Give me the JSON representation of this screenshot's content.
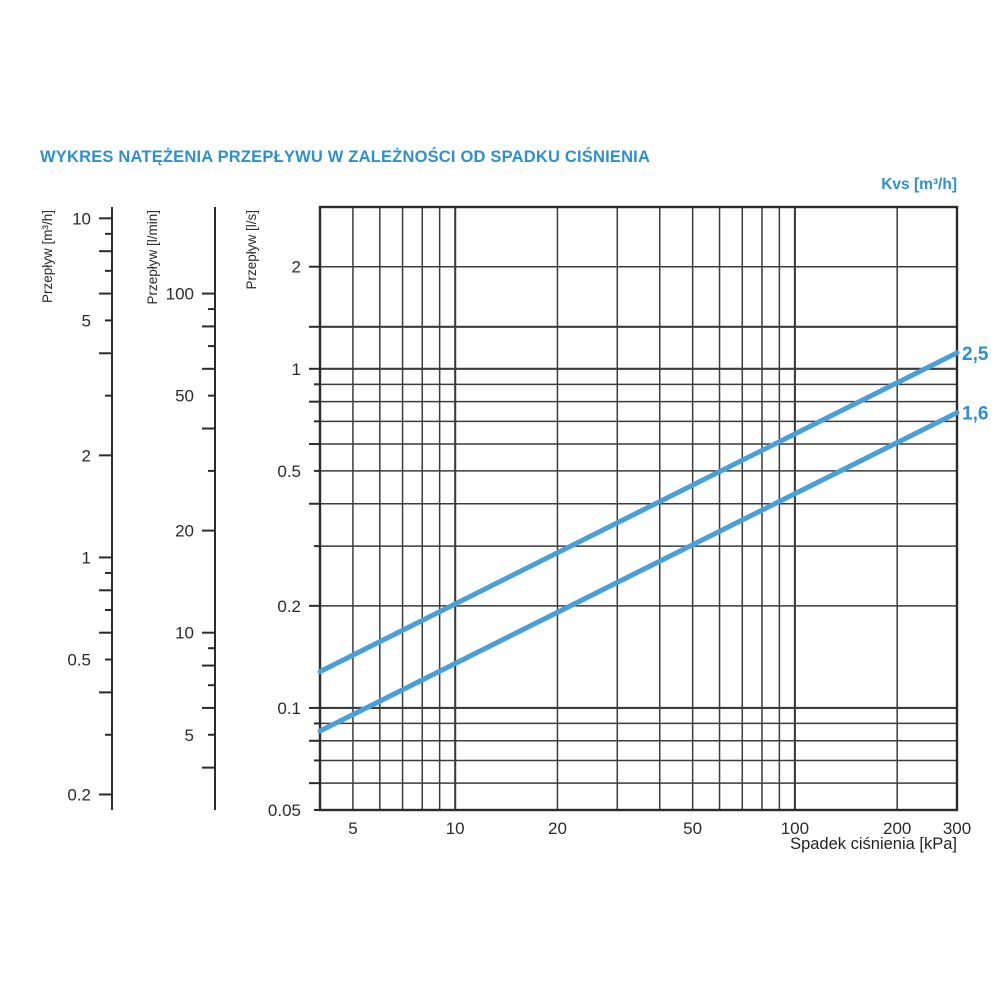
{
  "chart_data": {
    "type": "line",
    "title": "WYKRES NATĘŻENIA PRZEPŁYWU W ZALEŻNOŚCI OD SPADKU CIŚNIENIA",
    "kvs_header": "Kvs [m³/h]",
    "xlabel": "Spadek ciśnienia [kPa]",
    "x_scale": "log",
    "y_scale": "log",
    "grid": true,
    "x_range_kpa": [
      4,
      300
    ],
    "y_range_ls": [
      0.05,
      3
    ],
    "x_gridlines": [
      4,
      5,
      6,
      7,
      8,
      9,
      10,
      20,
      30,
      40,
      50,
      60,
      70,
      80,
      90,
      100,
      200,
      300
    ],
    "x_tick_labels": [
      5,
      10,
      20,
      50,
      100,
      200,
      300
    ],
    "y_gridlines": [
      3,
      2,
      1.33,
      1,
      0.9,
      0.8,
      0.7,
      0.6,
      0.5,
      0.4,
      0.3,
      0.2,
      0.1,
      0.09,
      0.08,
      0.07,
      0.06,
      0.05
    ],
    "y_unit_scales": [
      {
        "label": "Przepływ [m³/h]",
        "factor_per_ls": 3.6,
        "ticks": [
          10,
          9,
          8,
          7,
          6,
          5,
          4,
          3,
          2,
          1,
          0.9,
          0.8,
          0.7,
          0.6,
          0.5,
          0.4,
          0.3,
          0.2
        ],
        "labeled_ticks": [
          10,
          5,
          2,
          1,
          0.5,
          0.2
        ]
      },
      {
        "label": "Przepływ [l/min]",
        "factor_per_ls": 60,
        "ticks": [
          100,
          90,
          80,
          70,
          60,
          50,
          40,
          30,
          20,
          10,
          9,
          8,
          7,
          6,
          5,
          4
        ],
        "labeled_ticks": [
          100,
          50,
          20,
          10,
          5
        ]
      },
      {
        "label": "Przepływ [l/s]",
        "factor_per_ls": 1,
        "ticks": [
          2,
          1.33,
          1,
          0.9,
          0.8,
          0.7,
          0.6,
          0.5,
          0.4,
          0.3,
          0.2,
          0.1,
          0.09,
          0.08,
          0.07,
          0.06,
          0.05
        ],
        "labeled_ticks": [
          2,
          1,
          0.5,
          0.2,
          0.1,
          0.05
        ]
      }
    ],
    "series": [
      {
        "name": "Kvs 2,5",
        "kvs_label": "2,5",
        "points": [
          {
            "kpa": 4,
            "ls": 0.128
          },
          {
            "kpa": 300,
            "ls": 1.115
          }
        ]
      },
      {
        "name": "Kvs 1,6",
        "kvs_label": "1,6",
        "points": [
          {
            "kpa": 4,
            "ls": 0.0855
          },
          {
            "kpa": 300,
            "ls": 0.742
          }
        ]
      }
    ],
    "colors": {
      "accent_text": "#2e90cd",
      "curve": "#4a9fd8",
      "grid": "#3c3c3c",
      "axis": "#2b2b2b",
      "tick_text": "#2b2b2b"
    }
  }
}
